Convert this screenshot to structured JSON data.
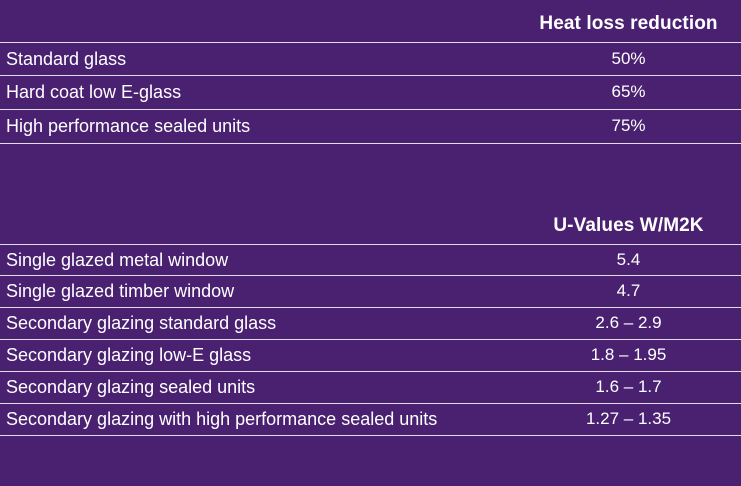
{
  "heat_loss_table": {
    "header": "Heat loss reduction",
    "rows": [
      {
        "name": "Standard glass",
        "value": "50%"
      },
      {
        "name": "Hard coat low E-glass",
        "value": "65%"
      },
      {
        "name": "High performance sealed units",
        "value": "75%"
      }
    ]
  },
  "u_values_table": {
    "header": "U-Values W/M2K",
    "rows": [
      {
        "name": "Single glazed metal window",
        "value": "5.4"
      },
      {
        "name": "Single glazed timber window",
        "value": "4.7"
      },
      {
        "name": "Secondary glazing standard glass",
        "value": "2.6 – 2.9"
      },
      {
        "name": "Secondary glazing low-E glass",
        "value": "1.8 – 1.95"
      },
      {
        "name": "Secondary glazing sealed units",
        "value": "1.6 – 1.7"
      },
      {
        "name": "Secondary glazing with high performance sealed units",
        "value": "1.27 – 1.35"
      }
    ]
  }
}
